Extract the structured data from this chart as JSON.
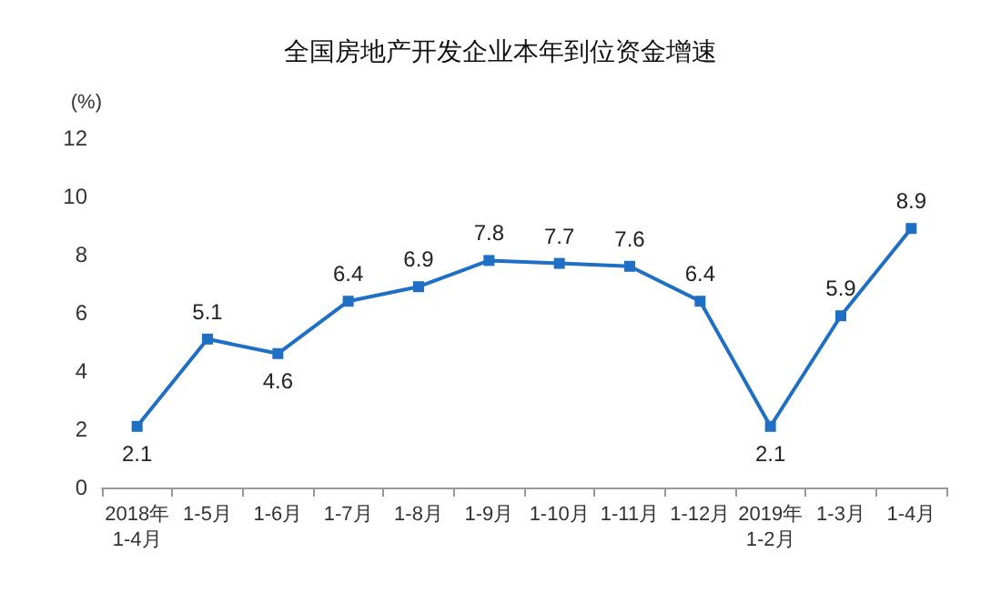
{
  "chart_data": {
    "type": "line",
    "title": "全国房地产开发企业本年到位资金增速",
    "ylabel": "(%)",
    "categories": [
      "2018年\n1-4月",
      "1-5月",
      "1-6月",
      "1-7月",
      "1-8月",
      "1-9月",
      "1-10月",
      "1-11月",
      "1-12月",
      "2019年\n1-2月",
      "1-3月",
      "1-4月"
    ],
    "series": [
      {
        "color": "#1f6fc5",
        "values": [
          2.1,
          5.1,
          4.6,
          6.4,
          6.9,
          7.8,
          7.7,
          7.6,
          6.4,
          2.1,
          5.9,
          8.9
        ]
      }
    ],
    "ylim": [
      0,
      12
    ],
    "yticks": [
      0,
      2,
      4,
      6,
      8,
      10,
      12
    ],
    "grid": false,
    "marker": "square",
    "line_style": "solid",
    "data_labels": true
  }
}
